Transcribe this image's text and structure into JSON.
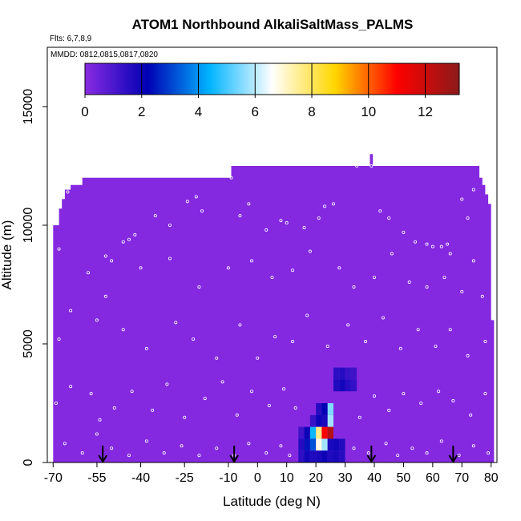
{
  "chart_data": {
    "type": "heatmap",
    "title": "ATOM1 Northbound AlkaliSaltMass_PALMS",
    "flights_label": "Flts: 6,7,8,9",
    "dates_label": "MMDD: 0812,0815,0817,0820",
    "xlabel": "Latitude (deg N)",
    "ylabel": "Altitude (m)",
    "xlim": [
      -72,
      82
    ],
    "ylim": [
      0,
      17500
    ],
    "x_ticks": [
      -70,
      -55,
      -40,
      -25,
      -10,
      0,
      10,
      20,
      30,
      40,
      50,
      60,
      70,
      80
    ],
    "y_ticks": [
      0,
      5000,
      10000,
      15000
    ],
    "colorbar": {
      "min": 0,
      "max": 13.2,
      "ticks": [
        0,
        2,
        4,
        6,
        8,
        10,
        12
      ],
      "colors": [
        "#8a2be2",
        "#0000b4",
        "#00b4ff",
        "#ffffff",
        "#ffd700",
        "#ff0000",
        "#8b1a1a"
      ]
    },
    "background_value": 0.1,
    "curtain_outline": [
      [
        -70,
        0
      ],
      [
        -70,
        10000
      ],
      [
        -68,
        10000
      ],
      [
        -68,
        10700
      ],
      [
        -67,
        10700
      ],
      [
        -67,
        11100
      ],
      [
        -66,
        11100
      ],
      [
        -66,
        11500
      ],
      [
        -64,
        11500
      ],
      [
        -64,
        11700
      ],
      [
        -60,
        11700
      ],
      [
        -60,
        12000
      ],
      [
        -9,
        12000
      ],
      [
        -9,
        12500
      ],
      [
        38.5,
        12500
      ],
      [
        38.5,
        13000
      ],
      [
        39.5,
        13000
      ],
      [
        39.5,
        12500
      ],
      [
        76,
        12500
      ],
      [
        76,
        12000
      ],
      [
        77,
        12000
      ],
      [
        77,
        11700
      ],
      [
        78,
        11700
      ],
      [
        78,
        11300
      ],
      [
        79,
        11300
      ],
      [
        79,
        10900
      ],
      [
        80,
        10900
      ],
      [
        80,
        6000
      ],
      [
        81,
        6000
      ],
      [
        81,
        0
      ]
    ],
    "cells": [
      {
        "lat": 27,
        "alt": 3250,
        "value": 1.7
      },
      {
        "lat": 29,
        "alt": 3250,
        "value": 1.9
      },
      {
        "lat": 31,
        "alt": 3250,
        "value": 1.6
      },
      {
        "lat": 33,
        "alt": 3250,
        "value": 1.4
      },
      {
        "lat": 27,
        "alt": 3750,
        "value": 1.5
      },
      {
        "lat": 29,
        "alt": 3750,
        "value": 1.6
      },
      {
        "lat": 31,
        "alt": 3750,
        "value": 1.3
      },
      {
        "lat": 33,
        "alt": 3750,
        "value": 1.2
      },
      {
        "lat": 21,
        "alt": 1750,
        "value": 2.0
      },
      {
        "lat": 23,
        "alt": 1750,
        "value": 1.8
      },
      {
        "lat": 25,
        "alt": 1750,
        "value": 5.8
      },
      {
        "lat": 19,
        "alt": 1750,
        "value": 1.3
      },
      {
        "lat": 21,
        "alt": 2250,
        "value": 1.6
      },
      {
        "lat": 23,
        "alt": 2250,
        "value": 2.2
      },
      {
        "lat": 25,
        "alt": 2250,
        "value": 5.5
      },
      {
        "lat": 15,
        "alt": 1250,
        "value": 1.2
      },
      {
        "lat": 17,
        "alt": 1250,
        "value": 2.0
      },
      {
        "lat": 19,
        "alt": 1250,
        "value": 4.5
      },
      {
        "lat": 21,
        "alt": 1250,
        "value": 7.6
      },
      {
        "lat": 23,
        "alt": 1250,
        "value": 11.0
      },
      {
        "lat": 25,
        "alt": 1250,
        "value": 12.4
      },
      {
        "lat": 15,
        "alt": 750,
        "value": 1.6
      },
      {
        "lat": 17,
        "alt": 750,
        "value": 2.4
      },
      {
        "lat": 19,
        "alt": 750,
        "value": 3.2
      },
      {
        "lat": 21,
        "alt": 750,
        "value": 6.8
      },
      {
        "lat": 23,
        "alt": 750,
        "value": 5.8
      },
      {
        "lat": 25,
        "alt": 750,
        "value": 1.8
      },
      {
        "lat": 27,
        "alt": 750,
        "value": 1.9
      },
      {
        "lat": 29,
        "alt": 750,
        "value": 1.7
      },
      {
        "lat": 15,
        "alt": 250,
        "value": 1.5
      },
      {
        "lat": 17,
        "alt": 250,
        "value": 1.9
      },
      {
        "lat": 19,
        "alt": 250,
        "value": 1.7
      },
      {
        "lat": 21,
        "alt": 250,
        "value": 1.8
      },
      {
        "lat": 23,
        "alt": 250,
        "value": 2.0
      },
      {
        "lat": 25,
        "alt": 250,
        "value": 1.7
      },
      {
        "lat": 27,
        "alt": 250,
        "value": 1.8
      },
      {
        "lat": 29,
        "alt": 250,
        "value": 1.6
      }
    ],
    "flight_arrows_lat": [
      -53,
      -8,
      39,
      67
    ],
    "samples": [
      [
        -65,
        11400
      ],
      [
        -61,
        11800
      ],
      [
        -52,
        8700
      ],
      [
        -50,
        8500
      ],
      [
        -46,
        9300
      ],
      [
        -44,
        9400
      ],
      [
        -42,
        9600
      ],
      [
        -35,
        10400
      ],
      [
        -30,
        10000
      ],
      [
        -24,
        11000
      ],
      [
        -21,
        11200
      ],
      [
        -19,
        10600
      ],
      [
        -9,
        12000
      ],
      [
        -6,
        10400
      ],
      [
        -3,
        10900
      ],
      [
        3,
        9800
      ],
      [
        8,
        10200
      ],
      [
        10,
        10100
      ],
      [
        16,
        9900
      ],
      [
        21,
        10300
      ],
      [
        23,
        10800
      ],
      [
        26,
        10900
      ],
      [
        34,
        12500
      ],
      [
        39,
        12500
      ],
      [
        42,
        10600
      ],
      [
        45,
        10300
      ],
      [
        50,
        9700
      ],
      [
        54,
        9300
      ],
      [
        58,
        9200
      ],
      [
        60,
        9100
      ],
      [
        63,
        9100
      ],
      [
        65,
        9200
      ],
      [
        66,
        8800
      ],
      [
        70,
        11100
      ],
      [
        72,
        10300
      ],
      [
        74,
        11500
      ],
      [
        -68,
        9000
      ],
      [
        -58,
        8000
      ],
      [
        -52,
        7000
      ],
      [
        -40,
        8200
      ],
      [
        -30,
        8600
      ],
      [
        -20,
        7400
      ],
      [
        -10,
        8200
      ],
      [
        -2,
        8500
      ],
      [
        5,
        7800
      ],
      [
        12,
        8100
      ],
      [
        18,
        8900
      ],
      [
        28,
        8200
      ],
      [
        33,
        7400
      ],
      [
        40,
        7800
      ],
      [
        46,
        8800
      ],
      [
        52,
        7600
      ],
      [
        58,
        7400
      ],
      [
        64,
        7800
      ],
      [
        70,
        7200
      ],
      [
        74,
        8500
      ],
      [
        77,
        7000
      ],
      [
        -68,
        5200
      ],
      [
        -64,
        6400
      ],
      [
        -55,
        6000
      ],
      [
        -46,
        5600
      ],
      [
        -38,
        4800
      ],
      [
        -28,
        5900
      ],
      [
        -22,
        5200
      ],
      [
        -14,
        4400
      ],
      [
        -6,
        5800
      ],
      [
        0,
        4400
      ],
      [
        6,
        5300
      ],
      [
        12,
        5100
      ],
      [
        17,
        6200
      ],
      [
        24,
        4900
      ],
      [
        31,
        5800
      ],
      [
        37,
        5100
      ],
      [
        43,
        6100
      ],
      [
        49,
        4800
      ],
      [
        55,
        5600
      ],
      [
        61,
        4900
      ],
      [
        66,
        5600
      ],
      [
        72,
        4500
      ],
      [
        78,
        5100
      ],
      [
        -69,
        2500
      ],
      [
        -64,
        3200
      ],
      [
        -57,
        2900
      ],
      [
        -54,
        1800
      ],
      [
        -49,
        2300
      ],
      [
        -43,
        3000
      ],
      [
        -36,
        2200
      ],
      [
        -31,
        3300
      ],
      [
        -25,
        1900
      ],
      [
        -18,
        2700
      ],
      [
        -12,
        3400
      ],
      [
        -7,
        2000
      ],
      [
        -2,
        3000
      ],
      [
        4,
        2400
      ],
      [
        9,
        3100
      ],
      [
        13,
        2300
      ],
      [
        35,
        1900
      ],
      [
        40,
        2800
      ],
      [
        45,
        2200
      ],
      [
        50,
        2900
      ],
      [
        56,
        2500
      ],
      [
        62,
        3000
      ],
      [
        67,
        2600
      ],
      [
        73,
        2000
      ],
      [
        78,
        2900
      ],
      [
        -66,
        800
      ],
      [
        -60,
        400
      ],
      [
        -55,
        1200
      ],
      [
        -50,
        600
      ],
      [
        -44,
        300
      ],
      [
        -38,
        900
      ],
      [
        -32,
        400
      ],
      [
        -26,
        700
      ],
      [
        -20,
        300
      ],
      [
        -14,
        600
      ],
      [
        -8,
        300
      ],
      [
        -3,
        800
      ],
      [
        3,
        400
      ],
      [
        8,
        700
      ],
      [
        11,
        300
      ],
      [
        33,
        600
      ],
      [
        38,
        400
      ],
      [
        44,
        800
      ],
      [
        48,
        300
      ],
      [
        53,
        600
      ],
      [
        58,
        400
      ],
      [
        63,
        900
      ],
      [
        69,
        300
      ],
      [
        74,
        700
      ],
      [
        79,
        400
      ]
    ]
  }
}
